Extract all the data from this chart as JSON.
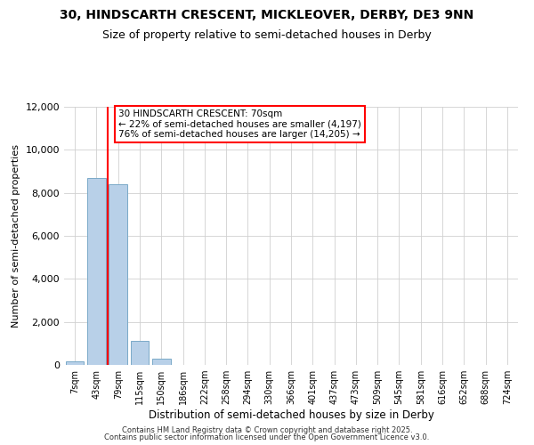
{
  "title": "30, HINDSCARTH CRESCENT, MICKLEOVER, DERBY, DE3 9NN",
  "subtitle": "Size of property relative to semi-detached houses in Derby",
  "xlabel": "Distribution of semi-detached houses by size in Derby",
  "ylabel": "Number of semi-detached properties",
  "bar_labels": [
    "7sqm",
    "43sqm",
    "79sqm",
    "115sqm",
    "150sqm",
    "186sqm",
    "222sqm",
    "258sqm",
    "294sqm",
    "330sqm",
    "366sqm",
    "401sqm",
    "437sqm",
    "473sqm",
    "509sqm",
    "545sqm",
    "581sqm",
    "616sqm",
    "652sqm",
    "688sqm",
    "724sqm"
  ],
  "bar_values": [
    150,
    8700,
    8400,
    1100,
    300,
    0,
    0,
    0,
    0,
    0,
    0,
    0,
    0,
    0,
    0,
    0,
    0,
    0,
    0,
    0,
    0
  ],
  "bar_color": "#b8d0e8",
  "bar_edgecolor": "#7aaac8",
  "red_line_x": 1.5,
  "annotation_title": "30 HINDSCARTH CRESCENT: 70sqm",
  "annotation_line1": "← 22% of semi-detached houses are smaller (4,197)",
  "annotation_line2": "76% of semi-detached houses are larger (14,205) →",
  "ylim": [
    0,
    12000
  ],
  "yticks": [
    0,
    2000,
    4000,
    6000,
    8000,
    10000,
    12000
  ],
  "background_color": "#ffffff",
  "grid_color": "#d0d0d0",
  "footer1": "Contains HM Land Registry data © Crown copyright and database right 2025.",
  "footer2": "Contains public sector information licensed under the Open Government Licence v3.0."
}
